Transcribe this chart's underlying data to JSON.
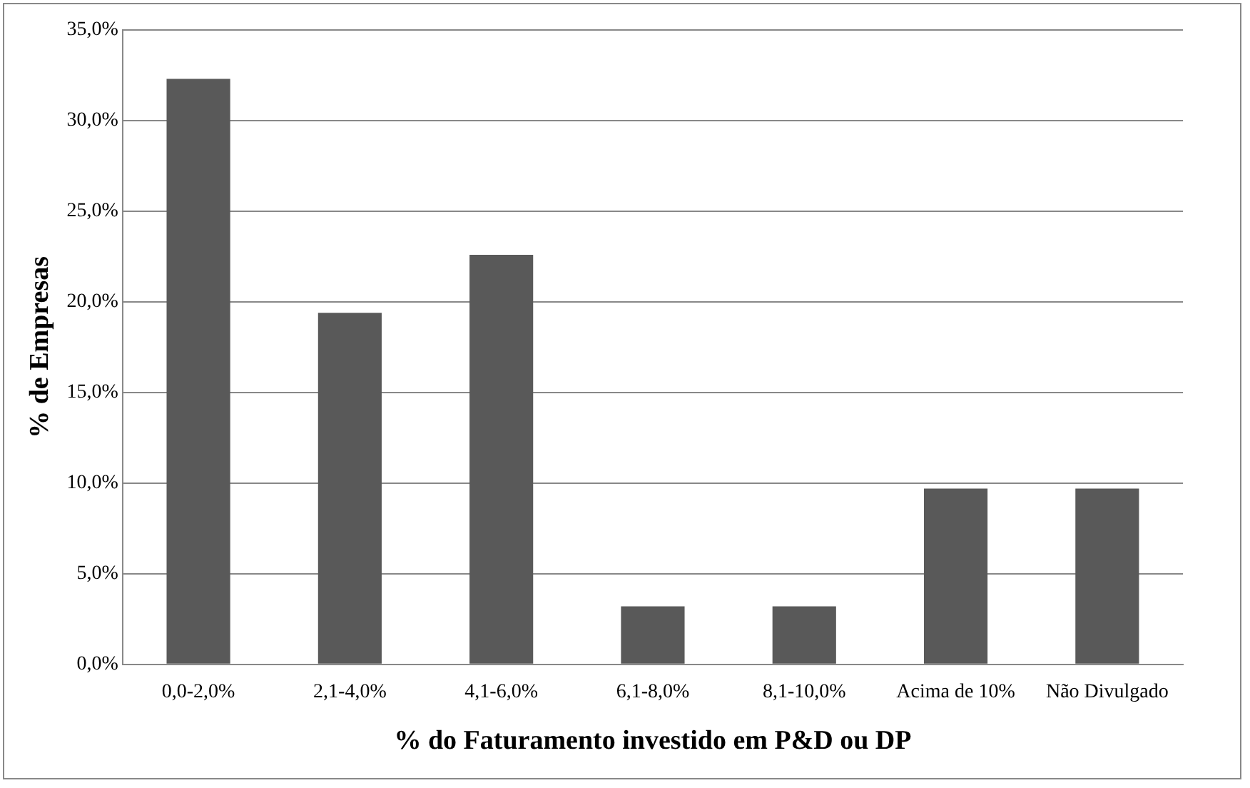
{
  "chart_data": {
    "type": "bar",
    "xlabel": "% do Faturamento investido em P&D ou DP",
    "ylabel": "% de Empresas",
    "categories": [
      "0,0-2,0%",
      "2,1-4,0%",
      "4,1-6,0%",
      "6,1-8,0%",
      "8,1-10,0%",
      "Acima de 10%",
      "Não Divulgado"
    ],
    "values": [
      32.3,
      19.4,
      22.6,
      3.2,
      3.2,
      9.7,
      9.7
    ],
    "color": "#595959",
    "ylim": [
      0,
      35
    ],
    "yticks": [
      {
        "value": 0,
        "label": "0,0%"
      },
      {
        "value": 5,
        "label": "5,0%"
      },
      {
        "value": 10,
        "label": "10,0%"
      },
      {
        "value": 15,
        "label": "15,0%"
      },
      {
        "value": 20,
        "label": "20,0%"
      },
      {
        "value": 25,
        "label": "25,0%"
      },
      {
        "value": 30,
        "label": "30,0%"
      },
      {
        "value": 35,
        "label": "35,0%"
      }
    ],
    "grid": "y",
    "legend": false
  }
}
